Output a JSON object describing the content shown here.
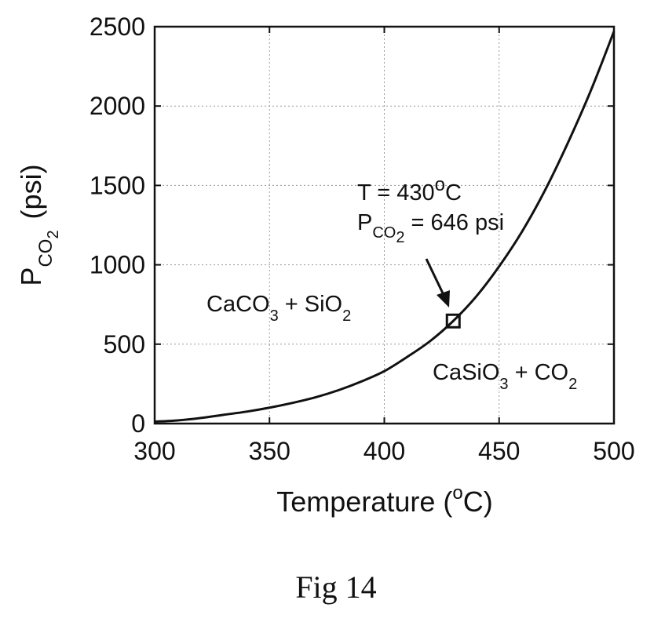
{
  "chart_data": {
    "type": "line",
    "xlabel": "Temperature (",
    "xlabel_degree": "o",
    "xlabel_unit": "C)",
    "ylabel_prefix": "P",
    "ylabel_subscript": "CO",
    "ylabel_subscript2": "2",
    "ylabel_unit": "(psi)",
    "xlim": [
      300,
      500
    ],
    "ylim": [
      0,
      2500
    ],
    "xticks": [
      300,
      350,
      400,
      450,
      500
    ],
    "yticks": [
      0,
      500,
      1000,
      1500,
      2000,
      2500
    ],
    "grid": true,
    "series": [
      {
        "x": [
          300,
          310,
          320,
          330,
          340,
          350,
          360,
          370,
          380,
          390,
          400,
          410,
          420,
          430,
          440,
          450,
          460,
          470,
          480,
          490,
          500
        ],
        "y": [
          12,
          20,
          35,
          55,
          75,
          100,
          130,
          165,
          210,
          265,
          330,
          420,
          520,
          646,
          800,
          990,
          1210,
          1470,
          1770,
          2100,
          2470
        ]
      }
    ],
    "marker": {
      "x": 430,
      "y": 646,
      "shape": "square"
    },
    "annotations": {
      "point_t_prefix": "T = 430",
      "point_t_degree": "o",
      "point_t_unit": "C",
      "point_p_prefix": "P",
      "point_p_sub": "CO",
      "point_p_sub2": "2",
      "point_p_value": " = 646 psi",
      "region_left_a": "CaCO",
      "region_left_a_sub": "3",
      "region_left_b": " + SiO",
      "region_left_b_sub": "2",
      "region_right_a": "CaSiO",
      "region_right_a_sub": "3",
      "region_right_b": " + CO",
      "region_right_b_sub": "2"
    }
  },
  "caption": "Fig 14"
}
